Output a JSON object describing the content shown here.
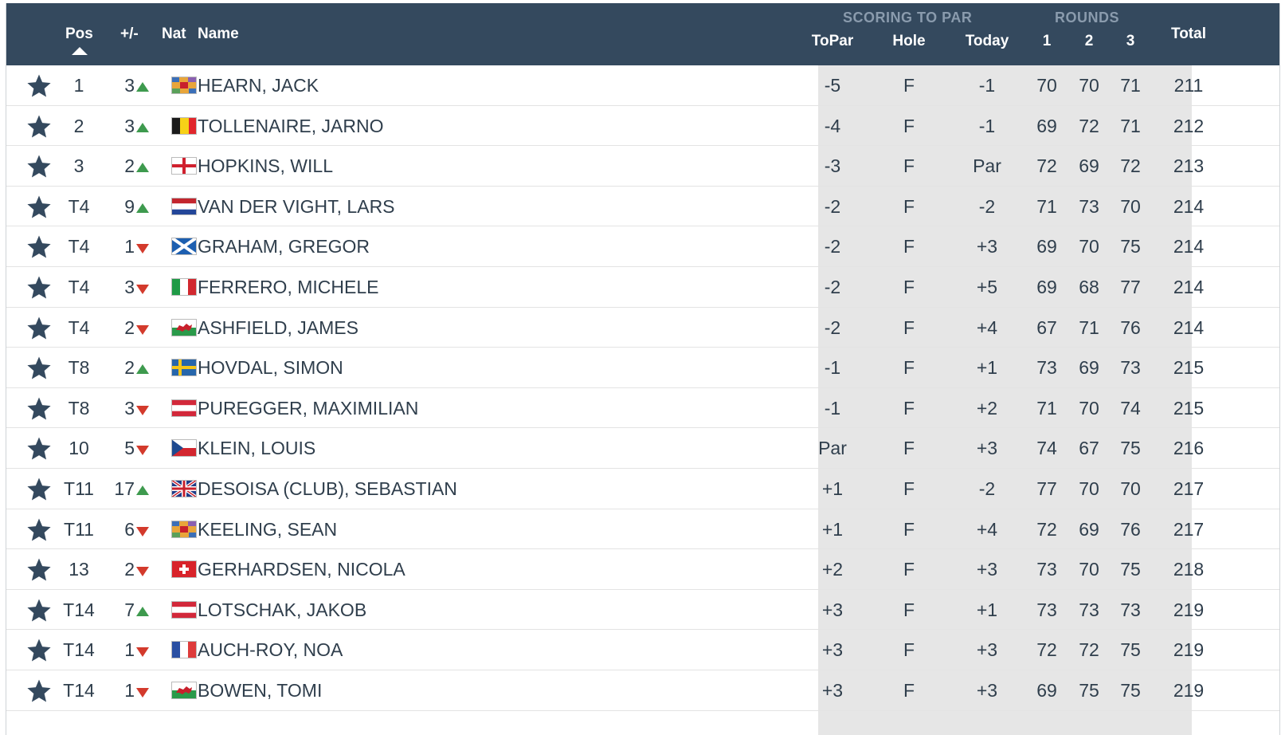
{
  "header": {
    "pos": "Pos",
    "move": "+/-",
    "nat": "Nat",
    "name": "Name",
    "scoring_group": "SCORING TO PAR",
    "rounds_group": "ROUNDS",
    "topar": "ToPar",
    "hole": "Hole",
    "today": "Today",
    "r1": "1",
    "r2": "2",
    "r3": "3",
    "total": "Total"
  },
  "colors": {
    "header_bg": "#34495e",
    "up": "#3e9a4e",
    "down": "#d33a2c",
    "shade": "#e6e6e6"
  },
  "rows": [
    {
      "pos": "1",
      "move": "3",
      "dir": "up",
      "flag": "Isle of Man",
      "name": "HEARN, JACK",
      "topar": "-5",
      "hole": "F",
      "today": "-1",
      "r1": "70",
      "r2": "70",
      "r3": "71",
      "total": "211"
    },
    {
      "pos": "2",
      "move": "3",
      "dir": "up",
      "flag": "Belgium",
      "name": "TOLLENAIRE, JARNO",
      "topar": "-4",
      "hole": "F",
      "today": "-1",
      "r1": "69",
      "r2": "72",
      "r3": "71",
      "total": "212"
    },
    {
      "pos": "3",
      "move": "2",
      "dir": "up",
      "flag": "England",
      "name": "HOPKINS, WILL",
      "topar": "-3",
      "hole": "F",
      "today": "Par",
      "r1": "72",
      "r2": "69",
      "r3": "72",
      "total": "213"
    },
    {
      "pos": "T4",
      "move": "9",
      "dir": "up",
      "flag": "Netherlands",
      "name": "VAN DER VIGHT, LARS",
      "topar": "-2",
      "hole": "F",
      "today": "-2",
      "r1": "71",
      "r2": "73",
      "r3": "70",
      "total": "214"
    },
    {
      "pos": "T4",
      "move": "1",
      "dir": "down",
      "flag": "Scotland",
      "name": "GRAHAM, GREGOR",
      "topar": "-2",
      "hole": "F",
      "today": "+3",
      "r1": "69",
      "r2": "70",
      "r3": "75",
      "total": "214"
    },
    {
      "pos": "T4",
      "move": "3",
      "dir": "down",
      "flag": "Italy",
      "name": "FERRERO, MICHELE",
      "topar": "-2",
      "hole": "F",
      "today": "+5",
      "r1": "69",
      "r2": "68",
      "r3": "77",
      "total": "214"
    },
    {
      "pos": "T4",
      "move": "2",
      "dir": "down",
      "flag": "Wales",
      "name": "ASHFIELD, JAMES",
      "topar": "-2",
      "hole": "F",
      "today": "+4",
      "r1": "67",
      "r2": "71",
      "r3": "76",
      "total": "214"
    },
    {
      "pos": "T8",
      "move": "2",
      "dir": "up",
      "flag": "Sweden",
      "name": "HOVDAL, SIMON",
      "topar": "-1",
      "hole": "F",
      "today": "+1",
      "r1": "73",
      "r2": "69",
      "r3": "73",
      "total": "215"
    },
    {
      "pos": "T8",
      "move": "3",
      "dir": "down",
      "flag": "Austria",
      "name": "PUREGGER, MAXIMILIAN",
      "topar": "-1",
      "hole": "F",
      "today": "+2",
      "r1": "71",
      "r2": "70",
      "r3": "74",
      "total": "215"
    },
    {
      "pos": "10",
      "move": "5",
      "dir": "down",
      "flag": "Czech Republic",
      "name": "KLEIN, LOUIS",
      "topar": "Par",
      "hole": "F",
      "today": "+3",
      "r1": "74",
      "r2": "67",
      "r3": "75",
      "total": "216"
    },
    {
      "pos": "T11",
      "move": "17",
      "dir": "up",
      "flag": "United Kingdom",
      "name": "DESOISA (CLUB), SEBASTIAN",
      "topar": "+1",
      "hole": "F",
      "today": "-2",
      "r1": "77",
      "r2": "70",
      "r3": "70",
      "total": "217"
    },
    {
      "pos": "T11",
      "move": "6",
      "dir": "down",
      "flag": "Isle of Man",
      "name": "KEELING, SEAN",
      "topar": "+1",
      "hole": "F",
      "today": "+4",
      "r1": "72",
      "r2": "69",
      "r3": "76",
      "total": "217"
    },
    {
      "pos": "13",
      "move": "2",
      "dir": "down",
      "flag": "Switzerland",
      "name": "GERHARDSEN, NICOLA",
      "topar": "+2",
      "hole": "F",
      "today": "+3",
      "r1": "73",
      "r2": "70",
      "r3": "75",
      "total": "218"
    },
    {
      "pos": "T14",
      "move": "7",
      "dir": "up",
      "flag": "Austria",
      "name": "LOTSCHAK, JAKOB",
      "topar": "+3",
      "hole": "F",
      "today": "+1",
      "r1": "73",
      "r2": "73",
      "r3": "73",
      "total": "219"
    },
    {
      "pos": "T14",
      "move": "1",
      "dir": "down",
      "flag": "France",
      "name": "AUCH-ROY, NOA",
      "topar": "+3",
      "hole": "F",
      "today": "+3",
      "r1": "72",
      "r2": "72",
      "r3": "75",
      "total": "219"
    },
    {
      "pos": "T14",
      "move": "1",
      "dir": "down",
      "flag": "Wales",
      "name": "BOWEN, TOMI",
      "topar": "+3",
      "hole": "F",
      "today": "+3",
      "r1": "69",
      "r2": "75",
      "r3": "75",
      "total": "219"
    }
  ]
}
